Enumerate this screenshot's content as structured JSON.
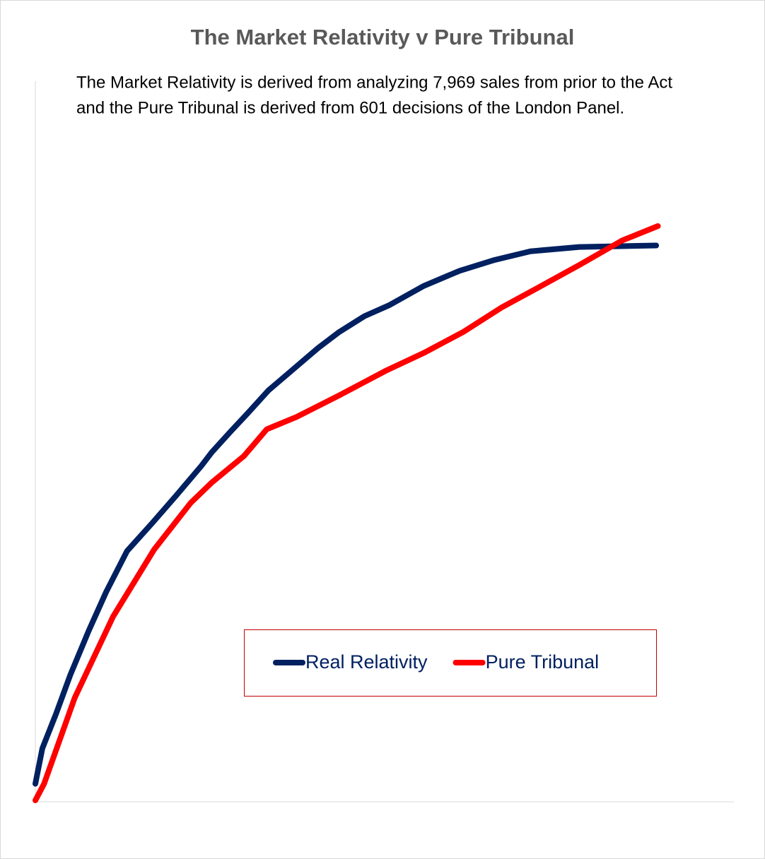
{
  "chart_data": {
    "type": "line",
    "title": "The Market Relativity v Pure Tribunal",
    "subtitle": [
      "The Market Relativity is derived from analyzing 7,969 sales from prior to the Act",
      "and the Pure Tribunal is derived from 601 decisions of the London Panel."
    ],
    "xlim": [
      0,
      80
    ],
    "ylim": [
      0,
      100
    ],
    "legend": "lower right",
    "series": [
      {
        "name": "Real Relativity",
        "color": "#002060",
        "x": [
          0,
          0.8,
          2.4,
          4,
          6.1,
          8.1,
          10.5,
          13.4,
          16.2,
          19,
          20.2,
          22.3,
          24.3,
          26.7,
          29.6,
          32.4,
          34.8,
          37.7,
          40.5,
          44.5,
          48.6,
          52.6,
          56.7,
          62.3,
          71.1
        ],
        "values": [
          2.5,
          7.4,
          12.3,
          17.6,
          23.7,
          29.1,
          34.8,
          38.7,
          42.6,
          46.6,
          48.5,
          51.3,
          53.9,
          57.1,
          60.1,
          63.0,
          65.2,
          67.4,
          68.9,
          71.6,
          73.7,
          75.2,
          76.4,
          77.0,
          77.2
        ]
      },
      {
        "name": "Pure Tribunal",
        "color": "#ff0000",
        "x": [
          0,
          1,
          4.5,
          8.9,
          13.6,
          17.8,
          20.2,
          23.9,
          26.5,
          29.9,
          34.8,
          40.1,
          44.5,
          49,
          53.4,
          57.5,
          62.3,
          67.2,
          71.3
        ],
        "values": [
          0.2,
          2.5,
          14.4,
          25.7,
          35.0,
          41.5,
          44.3,
          48.0,
          51.7,
          53.4,
          56.4,
          59.8,
          62.3,
          65.2,
          68.6,
          71.3,
          74.5,
          77.9,
          79.9
        ]
      }
    ]
  }
}
